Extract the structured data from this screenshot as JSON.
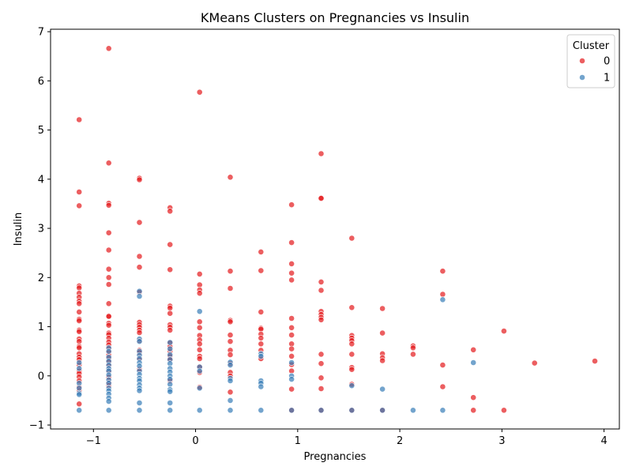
{
  "chart_data": {
    "type": "scatter",
    "title": "KMeans Clusters on Pregnancies vs Insulin",
    "xlabel": "Pregnancies",
    "ylabel": "Insulin",
    "xlim": [
      -1.42,
      4.15
    ],
    "ylim": [
      -1.08,
      7.05
    ],
    "xticks": [
      -1,
      0,
      1,
      2,
      3,
      4
    ],
    "xtick_labels": [
      "−1",
      "0",
      "1",
      "2",
      "3",
      "4"
    ],
    "yticks": [
      -1,
      0,
      1,
      2,
      3,
      4,
      5,
      6,
      7
    ],
    "ytick_labels": [
      "−1",
      "0",
      "1",
      "2",
      "3",
      "4",
      "5",
      "6",
      "7"
    ],
    "grid": false,
    "legend": {
      "title": "Cluster",
      "position": "top-right"
    },
    "series": [
      {
        "name": "0",
        "color": "#e41a1c",
        "points": [
          [
            -1.14,
            5.21
          ],
          [
            -1.14,
            3.74
          ],
          [
            -1.14,
            3.46
          ],
          [
            -1.14,
            1.83
          ],
          [
            -1.14,
            1.79
          ],
          [
            -1.14,
            1.68
          ],
          [
            -1.14,
            1.6
          ],
          [
            -1.14,
            1.52
          ],
          [
            -1.14,
            1.47
          ],
          [
            -1.14,
            1.3
          ],
          [
            -1.14,
            1.15
          ],
          [
            -1.14,
            1.12
          ],
          [
            -1.14,
            0.93
          ],
          [
            -1.14,
            0.9
          ],
          [
            -1.14,
            0.75
          ],
          [
            -1.14,
            0.7
          ],
          [
            -1.14,
            0.6
          ],
          [
            -1.14,
            0.57
          ],
          [
            -1.14,
            0.45
          ],
          [
            -1.14,
            0.38
          ],
          [
            -1.14,
            0.33
          ],
          [
            -1.14,
            0.22
          ],
          [
            -1.14,
            0.1
          ],
          [
            -1.14,
            0.05
          ],
          [
            -1.14,
            -0.02
          ],
          [
            -1.14,
            -0.1
          ],
          [
            -1.14,
            -0.22
          ],
          [
            -1.14,
            -0.3
          ],
          [
            -1.14,
            -0.57
          ],
          [
            -0.85,
            6.66
          ],
          [
            -0.85,
            4.33
          ],
          [
            -0.85,
            3.51
          ],
          [
            -0.85,
            3.47
          ],
          [
            -0.85,
            2.91
          ],
          [
            -0.85,
            2.56
          ],
          [
            -0.85,
            2.17
          ],
          [
            -0.85,
            2.0
          ],
          [
            -0.85,
            1.86
          ],
          [
            -0.85,
            1.47
          ],
          [
            -0.85,
            1.22
          ],
          [
            -0.85,
            1.21
          ],
          [
            -0.85,
            1.07
          ],
          [
            -0.85,
            1.03
          ],
          [
            -0.85,
            0.87
          ],
          [
            -0.85,
            0.84
          ],
          [
            -0.85,
            0.77
          ],
          [
            -0.85,
            0.69
          ],
          [
            -0.85,
            0.63
          ],
          [
            -0.85,
            0.55
          ],
          [
            -0.85,
            0.48
          ],
          [
            -0.85,
            0.42
          ],
          [
            -0.85,
            0.35
          ],
          [
            -0.85,
            0.28
          ],
          [
            -0.85,
            0.2
          ],
          [
            -0.85,
            0.1
          ],
          [
            -0.85,
            -0.03
          ],
          [
            -0.85,
            -0.13
          ],
          [
            -0.85,
            -0.2
          ],
          [
            -0.55,
            4.02
          ],
          [
            -0.55,
            3.99
          ],
          [
            -0.55,
            3.12
          ],
          [
            -0.55,
            2.43
          ],
          [
            -0.55,
            2.21
          ],
          [
            -0.55,
            1.7
          ],
          [
            -0.55,
            1.09
          ],
          [
            -0.55,
            1.04
          ],
          [
            -0.55,
            0.99
          ],
          [
            -0.55,
            0.93
          ],
          [
            -0.55,
            0.88
          ],
          [
            -0.55,
            0.72
          ],
          [
            -0.55,
            0.52
          ],
          [
            -0.55,
            0.47
          ],
          [
            -0.55,
            0.35
          ],
          [
            -0.55,
            0.13
          ],
          [
            -0.25,
            3.42
          ],
          [
            -0.25,
            3.35
          ],
          [
            -0.25,
            2.67
          ],
          [
            -0.25,
            2.16
          ],
          [
            -0.25,
            1.42
          ],
          [
            -0.25,
            1.38
          ],
          [
            -0.25,
            1.27
          ],
          [
            -0.25,
            1.04
          ],
          [
            -0.25,
            0.99
          ],
          [
            -0.25,
            0.93
          ],
          [
            -0.25,
            0.67
          ],
          [
            -0.25,
            0.6
          ],
          [
            -0.25,
            0.5
          ],
          [
            -0.25,
            0.4
          ],
          [
            -0.25,
            0.33
          ],
          [
            -0.25,
            -0.1
          ],
          [
            0.04,
            5.77
          ],
          [
            0.04,
            2.07
          ],
          [
            0.04,
            1.85
          ],
          [
            0.04,
            1.75
          ],
          [
            0.04,
            1.68
          ],
          [
            0.04,
            1.1
          ],
          [
            0.04,
            0.98
          ],
          [
            0.04,
            0.82
          ],
          [
            0.04,
            0.73
          ],
          [
            0.04,
            0.65
          ],
          [
            0.04,
            0.53
          ],
          [
            0.04,
            0.4
          ],
          [
            0.04,
            0.35
          ],
          [
            0.04,
            0.18
          ],
          [
            0.04,
            0.07
          ],
          [
            0.04,
            -0.23
          ],
          [
            0.34,
            4.04
          ],
          [
            0.34,
            2.13
          ],
          [
            0.34,
            1.78
          ],
          [
            0.34,
            1.13
          ],
          [
            0.34,
            1.1
          ],
          [
            0.34,
            0.83
          ],
          [
            0.34,
            0.7
          ],
          [
            0.34,
            0.52
          ],
          [
            0.34,
            0.43
          ],
          [
            0.34,
            0.25
          ],
          [
            0.34,
            0.07
          ],
          [
            0.34,
            0.0
          ],
          [
            0.34,
            -0.33
          ],
          [
            0.64,
            2.52
          ],
          [
            0.64,
            2.14
          ],
          [
            0.64,
            1.3
          ],
          [
            0.64,
            0.97
          ],
          [
            0.64,
            0.95
          ],
          [
            0.64,
            0.85
          ],
          [
            0.64,
            0.77
          ],
          [
            0.64,
            0.65
          ],
          [
            0.64,
            0.52
          ],
          [
            0.64,
            0.35
          ],
          [
            0.94,
            3.48
          ],
          [
            0.94,
            2.71
          ],
          [
            0.94,
            2.28
          ],
          [
            0.94,
            2.09
          ],
          [
            0.94,
            1.95
          ],
          [
            0.94,
            1.17
          ],
          [
            0.94,
            0.98
          ],
          [
            0.94,
            0.83
          ],
          [
            0.94,
            0.65
          ],
          [
            0.94,
            0.55
          ],
          [
            0.94,
            0.4
          ],
          [
            0.94,
            0.23
          ],
          [
            0.94,
            0.1
          ],
          [
            0.94,
            -0.27
          ],
          [
            0.94,
            -0.7
          ],
          [
            1.23,
            4.52
          ],
          [
            1.23,
            3.62
          ],
          [
            1.23,
            3.61
          ],
          [
            1.23,
            1.91
          ],
          [
            1.23,
            1.74
          ],
          [
            1.23,
            1.31
          ],
          [
            1.23,
            1.25
          ],
          [
            1.23,
            1.19
          ],
          [
            1.23,
            1.14
          ],
          [
            1.23,
            0.44
          ],
          [
            1.23,
            0.25
          ],
          [
            1.23,
            -0.04
          ],
          [
            1.23,
            -0.26
          ],
          [
            1.23,
            -0.7
          ],
          [
            1.53,
            2.8
          ],
          [
            1.53,
            1.39
          ],
          [
            1.53,
            0.82
          ],
          [
            1.53,
            0.77
          ],
          [
            1.53,
            0.72
          ],
          [
            1.53,
            0.65
          ],
          [
            1.53,
            0.44
          ],
          [
            1.53,
            0.17
          ],
          [
            1.53,
            0.13
          ],
          [
            1.53,
            -0.17
          ],
          [
            1.53,
            -0.7
          ],
          [
            1.83,
            1.37
          ],
          [
            1.83,
            0.87
          ],
          [
            1.83,
            0.45
          ],
          [
            1.83,
            0.37
          ],
          [
            1.83,
            0.31
          ],
          [
            1.83,
            -0.7
          ],
          [
            2.13,
            0.61
          ],
          [
            2.13,
            0.57
          ],
          [
            2.13,
            0.44
          ],
          [
            2.42,
            2.13
          ],
          [
            2.42,
            1.66
          ],
          [
            2.42,
            0.22
          ],
          [
            2.42,
            -0.22
          ],
          [
            2.72,
            0.53
          ],
          [
            2.72,
            -0.44
          ],
          [
            2.72,
            -0.7
          ],
          [
            3.02,
            0.91
          ],
          [
            3.02,
            -0.7
          ],
          [
            3.32,
            0.26
          ],
          [
            3.91,
            0.3
          ]
        ]
      },
      {
        "name": "1",
        "color": "#377eb8",
        "points": [
          [
            -1.14,
            0.27
          ],
          [
            -1.14,
            0.15
          ],
          [
            -1.14,
            -0.15
          ],
          [
            -1.14,
            -0.25
          ],
          [
            -1.14,
            -0.35
          ],
          [
            -1.14,
            -0.38
          ],
          [
            -1.14,
            -0.7
          ],
          [
            -0.85,
            0.57
          ],
          [
            -0.85,
            0.5
          ],
          [
            -0.85,
            0.38
          ],
          [
            -0.85,
            0.3
          ],
          [
            -0.85,
            0.22
          ],
          [
            -0.85,
            0.15
          ],
          [
            -0.85,
            0.1
          ],
          [
            -0.85,
            0.02
          ],
          [
            -0.85,
            -0.08
          ],
          [
            -0.85,
            -0.15
          ],
          [
            -0.85,
            -0.25
          ],
          [
            -0.85,
            -0.3
          ],
          [
            -0.85,
            -0.37
          ],
          [
            -0.85,
            -0.45
          ],
          [
            -0.85,
            -0.52
          ],
          [
            -0.85,
            -0.7
          ],
          [
            -0.55,
            1.72
          ],
          [
            -0.55,
            1.62
          ],
          [
            -0.55,
            0.75
          ],
          [
            -0.55,
            0.7
          ],
          [
            -0.55,
            0.5
          ],
          [
            -0.55,
            0.42
          ],
          [
            -0.55,
            0.35
          ],
          [
            -0.55,
            0.27
          ],
          [
            -0.55,
            0.2
          ],
          [
            -0.55,
            0.1
          ],
          [
            -0.55,
            0.03
          ],
          [
            -0.55,
            -0.05
          ],
          [
            -0.55,
            -0.1
          ],
          [
            -0.55,
            -0.18
          ],
          [
            -0.55,
            -0.25
          ],
          [
            -0.55,
            -0.3
          ],
          [
            -0.55,
            -0.55
          ],
          [
            -0.55,
            -0.7
          ],
          [
            -0.25,
            0.68
          ],
          [
            -0.25,
            0.55
          ],
          [
            -0.25,
            0.43
          ],
          [
            -0.25,
            0.33
          ],
          [
            -0.25,
            0.25
          ],
          [
            -0.25,
            0.15
          ],
          [
            -0.25,
            0.08
          ],
          [
            -0.25,
            0.0
          ],
          [
            -0.25,
            -0.07
          ],
          [
            -0.25,
            -0.17
          ],
          [
            -0.25,
            -0.28
          ],
          [
            -0.25,
            -0.32
          ],
          [
            -0.25,
            -0.55
          ],
          [
            -0.25,
            -0.7
          ],
          [
            0.04,
            1.31
          ],
          [
            0.04,
            0.18
          ],
          [
            0.04,
            0.1
          ],
          [
            0.04,
            -0.25
          ],
          [
            0.04,
            -0.7
          ],
          [
            0.34,
            0.28
          ],
          [
            0.34,
            0.22
          ],
          [
            0.34,
            -0.05
          ],
          [
            0.34,
            -0.1
          ],
          [
            0.34,
            -0.5
          ],
          [
            0.34,
            -0.7
          ],
          [
            0.64,
            0.45
          ],
          [
            0.64,
            0.4
          ],
          [
            0.64,
            -0.1
          ],
          [
            0.64,
            -0.15
          ],
          [
            0.64,
            -0.22
          ],
          [
            0.64,
            -0.7
          ],
          [
            0.94,
            0.27
          ],
          [
            0.94,
            0.0
          ],
          [
            0.94,
            -0.07
          ],
          [
            0.94,
            -0.7
          ],
          [
            1.23,
            -0.7
          ],
          [
            1.53,
            -0.2
          ],
          [
            1.53,
            -0.7
          ],
          [
            1.83,
            -0.27
          ],
          [
            1.83,
            -0.7
          ],
          [
            2.13,
            -0.7
          ],
          [
            2.42,
            1.55
          ],
          [
            2.42,
            -0.7
          ],
          [
            2.72,
            0.27
          ]
        ]
      }
    ]
  }
}
